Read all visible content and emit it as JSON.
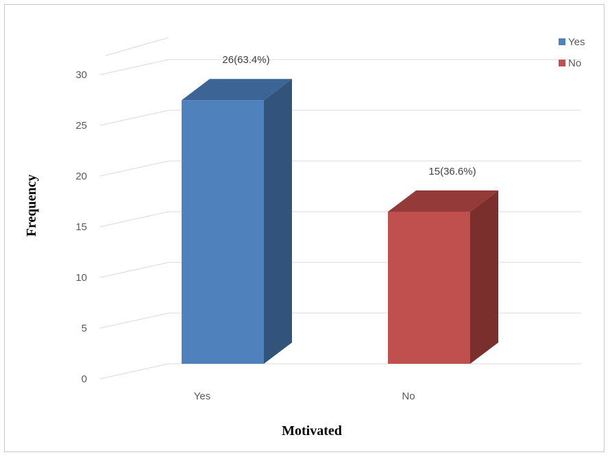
{
  "chart_data": {
    "type": "bar",
    "categories": [
      "Yes",
      "No"
    ],
    "values": [
      26,
      15
    ],
    "data_labels": [
      "26(63.4%)",
      "15(36.6%)"
    ],
    "xlabel": "Motivated",
    "ylabel": "Frequency",
    "ylim": [
      0,
      30
    ],
    "yticks": [
      0,
      5,
      10,
      15,
      20,
      25,
      30
    ],
    "grid": true,
    "three_d": true,
    "legend": {
      "placement": "top-right",
      "entries": [
        {
          "label": "Yes",
          "color": "#4f81bd"
        },
        {
          "label": "No",
          "color": "#c0504d"
        }
      ]
    },
    "colors": {
      "Yes": {
        "front": "#4f81bd",
        "side": "#32547a",
        "top": "#3c6595"
      },
      "No": {
        "front": "#c0504d",
        "side": "#7a2f2d",
        "top": "#943a38"
      }
    }
  }
}
